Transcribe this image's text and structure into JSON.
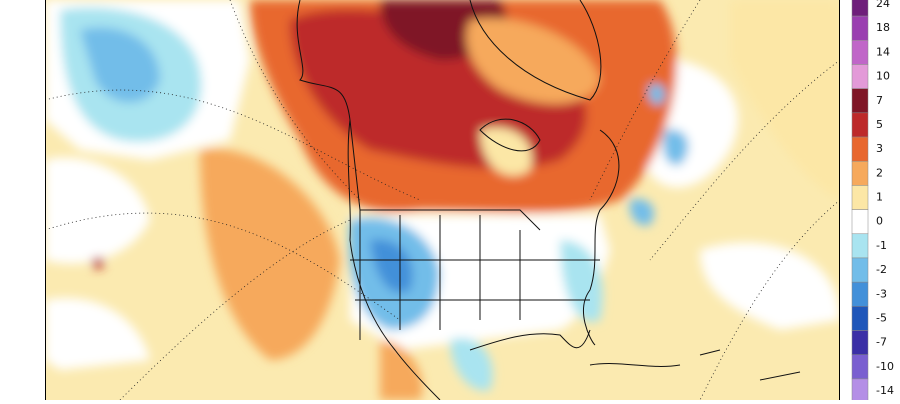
{
  "colorbar": {
    "levels": [
      24,
      18,
      14,
      10,
      7,
      5,
      3,
      2,
      1,
      0,
      -1,
      -2,
      -3,
      -5,
      -7,
      -10,
      -14
    ],
    "colors": [
      "#6e1f7a",
      "#9a3fb0",
      "#c066c8",
      "#e39ad8",
      "#7f1626",
      "#bd2a2a",
      "#e8672e",
      "#f6a95c",
      "#fce7a6",
      "#ffffff",
      "#a9e4f0",
      "#72bde9",
      "#4390d9",
      "#1f56b9",
      "#3b2fa6",
      "#7a5fd0",
      "#b48ee6"
    ]
  }
}
